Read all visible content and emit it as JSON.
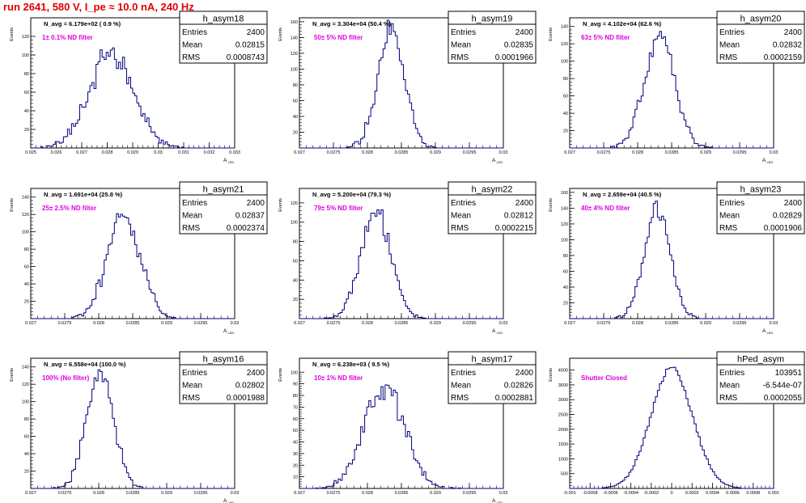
{
  "header": {
    "run_title": "run 2641,   580 V, I_pe ≈ 10.0 nA, 240 Hz"
  },
  "colors": {
    "histogram": "#00007f",
    "annotation": "#e000e0",
    "run_title": "#e00000",
    "axis": "#000000"
  },
  "chart_data": [
    {
      "type": "bar",
      "name": "h_asym18",
      "title": "N_avg = 6.179e+02 ( 0.9 %)",
      "annotation": "1± 0.1% ND filter",
      "ylabel": "Events",
      "xlabel": "A_{LED}",
      "stats": {
        "Entries": "2400",
        "Mean": "0.02815",
        "RMS": "0.0008743"
      },
      "xlim": [
        0.025,
        0.033
      ],
      "ylim": [
        0,
        140
      ],
      "x_ticks": [
        "0.025",
        "0.026",
        "0.027",
        "0.028",
        "0.029",
        "0.03",
        "0.031",
        "0.032",
        "0.033"
      ],
      "y_ticks": [
        "20",
        "40",
        "60",
        "80",
        "100",
        "120"
      ],
      "gaussian": {
        "mean": 0.02815,
        "sigma": 0.00087,
        "peak": 100
      }
    },
    {
      "type": "bar",
      "name": "h_asym19",
      "title": "N_avg = 3.304e+04 (50.4 %)",
      "annotation": "50± 5% ND filter",
      "ylabel": "Events",
      "xlabel": "A_{LED}",
      "stats": {
        "Entries": "2400",
        "Mean": "0.02835",
        "RMS": "0.0001966"
      },
      "xlim": [
        0.027,
        0.03
      ],
      "ylim": [
        0,
        165
      ],
      "x_ticks": [
        "0.027",
        "0.0275",
        "0.028",
        "0.0285",
        "0.029",
        "0.0295",
        "0.03"
      ],
      "y_ticks": [
        "20",
        "40",
        "60",
        "80",
        "100",
        "120",
        "140",
        "160"
      ],
      "gaussian": {
        "mean": 0.02835,
        "sigma": 0.0002,
        "peak": 145
      }
    },
    {
      "type": "bar",
      "name": "h_asym20",
      "title": "N_avg = 4.102e+04 (62.6 %)",
      "annotation": "63± 5% ND filter",
      "ylabel": "Events",
      "xlabel": "A_{LED}",
      "stats": {
        "Entries": "2400",
        "Mean": "0.02832",
        "RMS": "0.0002159"
      },
      "xlim": [
        0.027,
        0.03
      ],
      "ylim": [
        0,
        150
      ],
      "x_ticks": [
        "0.027",
        "0.0275",
        "0.028",
        "0.0285",
        "0.029",
        "0.0295",
        "0.03"
      ],
      "y_ticks": [
        "20",
        "40",
        "60",
        "80",
        "100",
        "120",
        "140"
      ],
      "gaussian": {
        "mean": 0.02832,
        "sigma": 0.00022,
        "peak": 130
      }
    },
    {
      "type": "bar",
      "name": "h_asym21",
      "title": "N_avg = 1.691e+04 (25.8 %)",
      "annotation": "25± 2.5% ND filter",
      "ylabel": "Events",
      "xlabel": "A_{LED}",
      "stats": {
        "Entries": "2400",
        "Mean": "0.02837",
        "RMS": "0.0002374"
      },
      "xlim": [
        0.027,
        0.03
      ],
      "ylim": [
        0,
        150
      ],
      "x_ticks": [
        "0.027",
        "0.0275",
        "0.028",
        "0.0285",
        "0.029",
        "0.0295",
        "0.03"
      ],
      "y_ticks": [
        "20",
        "40",
        "60",
        "80",
        "100",
        "120",
        "140"
      ],
      "gaussian": {
        "mean": 0.02837,
        "sigma": 0.00024,
        "peak": 122
      }
    },
    {
      "type": "bar",
      "name": "h_asym22",
      "title": "N_avg = 5.200e+04 (79.3 %)",
      "annotation": "79± 5% ND filter",
      "ylabel": "Events",
      "xlabel": "A_{LED}",
      "stats": {
        "Entries": "2400",
        "Mean": "0.02812",
        "RMS": "0.0002215"
      },
      "xlim": [
        0.027,
        0.03
      ],
      "ylim": [
        0,
        135
      ],
      "x_ticks": [
        "0.027",
        "0.0275",
        "0.028",
        "0.0285",
        "0.029",
        "0.0295",
        "0.03"
      ],
      "y_ticks": [
        "20",
        "40",
        "60",
        "80",
        "100",
        "120"
      ],
      "gaussian": {
        "mean": 0.02812,
        "sigma": 0.00022,
        "peak": 115
      }
    },
    {
      "type": "bar",
      "name": "h_asym23",
      "title": "N_avg = 2.659e+04 (40.5 %)",
      "annotation": "40± 4% ND filter",
      "ylabel": "Events",
      "xlabel": "A_{LED}",
      "stats": {
        "Entries": "2400",
        "Mean": "0.02829",
        "RMS": "0.0001906"
      },
      "xlim": [
        0.027,
        0.03
      ],
      "ylim": [
        0,
        165
      ],
      "x_ticks": [
        "0.027",
        "0.0275",
        "0.028",
        "0.0285",
        "0.029",
        "0.0295",
        "0.03"
      ],
      "y_ticks": [
        "20",
        "40",
        "60",
        "80",
        "100",
        "120",
        "140",
        "160"
      ],
      "gaussian": {
        "mean": 0.02829,
        "sigma": 0.00019,
        "peak": 140
      }
    },
    {
      "type": "bar",
      "name": "h_asym16",
      "title": "N_avg = 6.558e+04 (100.0 %)",
      "annotation": "100% (No filter)",
      "ylabel": "Events",
      "xlabel": "A_{LED}",
      "stats": {
        "Entries": "2400",
        "Mean": "0.02802",
        "RMS": "0.0001988"
      },
      "xlim": [
        0.027,
        0.03
      ],
      "ylim": [
        0,
        150
      ],
      "x_ticks": [
        "0.027",
        "0.0275",
        "0.028",
        "0.0285",
        "0.029",
        "0.0295",
        "0.03"
      ],
      "y_ticks": [
        "20",
        "40",
        "60",
        "80",
        "100",
        "120",
        "140"
      ],
      "gaussian": {
        "mean": 0.02802,
        "sigma": 0.0002,
        "peak": 132
      }
    },
    {
      "type": "bar",
      "name": "h_asym17",
      "title": "N_avg = 6.238e+03 ( 9.5 %)",
      "annotation": "10± 1% ND filter",
      "ylabel": "Events",
      "xlabel": "A_{LED}",
      "stats": {
        "Entries": "2400",
        "Mean": "0.02826",
        "RMS": "0.0002881"
      },
      "xlim": [
        0.027,
        0.03
      ],
      "ylim": [
        0,
        112
      ],
      "x_ticks": [
        "0.027",
        "0.0275",
        "0.028",
        "0.0285",
        "0.029",
        "0.0295",
        "0.03"
      ],
      "y_ticks": [
        "10",
        "20",
        "30",
        "40",
        "50",
        "60",
        "70",
        "80",
        "90",
        "100"
      ],
      "gaussian": {
        "mean": 0.02826,
        "sigma": 0.00029,
        "peak": 90
      }
    },
    {
      "type": "bar",
      "name": "hPed_asym",
      "title": "",
      "annotation": "Shutter Closed",
      "ylabel": "Events",
      "xlabel": "",
      "stats": {
        "Entries": "103951",
        "Mean": "-6.544e-07",
        "RMS": "0.0002055"
      },
      "xlim": [
        -0.001,
        0.001
      ],
      "ylim": [
        0,
        4400
      ],
      "x_ticks": [
        "-0.001",
        "-0.0008",
        "-0.0006",
        "-0.0004",
        "-0.0002",
        "0",
        "0.0002",
        "0.0004",
        "0.0006",
        "0.0008",
        "0.001"
      ],
      "y_ticks": [
        "500",
        "1000",
        "1500",
        "2000",
        "2500",
        "3000",
        "3500",
        "4000"
      ],
      "gaussian": {
        "mean": 0.0,
        "sigma": 0.000205,
        "peak": 4050
      }
    }
  ]
}
